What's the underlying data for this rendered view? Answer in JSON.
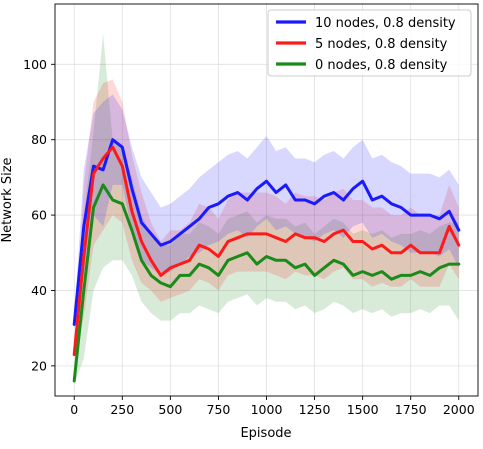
{
  "chart_data": {
    "type": "line",
    "title": "",
    "xlabel": "Episode",
    "ylabel": "Network Size",
    "xlim": [
      -100,
      2100
    ],
    "ylim": [
      12,
      116
    ],
    "xticks": [
      0,
      250,
      500,
      750,
      1000,
      1250,
      1500,
      1750,
      2000
    ],
    "yticks": [
      20,
      40,
      60,
      80,
      100
    ],
    "grid": true,
    "legend_position": "top-right",
    "x": [
      0,
      50,
      100,
      150,
      200,
      250,
      300,
      350,
      400,
      450,
      500,
      550,
      600,
      650,
      700,
      750,
      800,
      850,
      900,
      950,
      1000,
      1050,
      1100,
      1150,
      1200,
      1250,
      1300,
      1350,
      1400,
      1450,
      1500,
      1550,
      1600,
      1650,
      1700,
      1750,
      1800,
      1850,
      1900,
      1950,
      2000
    ],
    "series": [
      {
        "name": "10 nodes, 0.8 density",
        "color": "#1a1aff",
        "values": [
          31,
          57,
          73,
          72,
          80,
          78,
          67,
          58,
          55,
          52,
          53,
          55,
          57,
          59,
          62,
          63,
          65,
          66,
          64,
          67,
          69,
          66,
          68,
          64,
          64,
          63,
          65,
          66,
          64,
          67,
          69,
          64,
          65,
          63,
          62,
          60,
          60,
          60,
          59,
          61,
          56
        ],
        "upper": [
          32,
          72,
          87,
          90,
          92,
          88,
          78,
          70,
          66,
          62,
          63,
          65,
          67,
          70,
          72,
          74,
          76,
          77,
          75,
          78,
          81,
          77,
          78,
          75,
          75,
          74,
          76,
          77,
          75,
          78,
          80,
          75,
          76,
          74,
          73,
          71,
          71,
          71,
          70,
          72,
          68
        ],
        "lower": [
          30,
          44,
          60,
          57,
          68,
          68,
          56,
          48,
          46,
          44,
          45,
          47,
          49,
          50,
          52,
          53,
          55,
          56,
          54,
          57,
          59,
          56,
          57,
          55,
          54,
          53,
          55,
          56,
          54,
          57,
          58,
          54,
          55,
          53,
          52,
          50,
          50,
          50,
          49,
          51,
          46
        ]
      },
      {
        "name": "5 nodes, 0.8 density",
        "color": "#ff1a1a",
        "values": [
          23,
          49,
          71,
          75,
          78,
          73,
          61,
          53,
          48,
          44,
          46,
          47,
          48,
          52,
          51,
          49,
          53,
          54,
          55,
          55,
          55,
          54,
          53,
          55,
          54,
          54,
          53,
          55,
          56,
          53,
          53,
          51,
          52,
          50,
          50,
          52,
          50,
          50,
          50,
          57,
          52
        ],
        "upper": [
          24,
          68,
          90,
          95,
          96,
          90,
          76,
          66,
          58,
          53,
          56,
          56,
          58,
          63,
          62,
          59,
          64,
          66,
          66,
          66,
          66,
          65,
          63,
          66,
          65,
          65,
          64,
          66,
          67,
          64,
          64,
          62,
          62,
          60,
          60,
          62,
          60,
          60,
          60,
          68,
          62
        ],
        "lower": [
          22,
          33,
          52,
          56,
          60,
          58,
          48,
          42,
          40,
          37,
          38,
          39,
          40,
          43,
          42,
          40,
          44,
          45,
          45,
          45,
          45,
          44,
          43,
          45,
          44,
          44,
          43,
          45,
          46,
          43,
          43,
          41,
          42,
          41,
          41,
          43,
          41,
          41,
          41,
          47,
          43
        ]
      },
      {
        "name": "0 nodes, 0.8 density",
        "color": "#1a8a1a",
        "values": [
          16,
          40,
          62,
          68,
          64,
          63,
          56,
          48,
          44,
          42,
          41,
          44,
          44,
          47,
          46,
          44,
          48,
          49,
          50,
          47,
          49,
          48,
          48,
          46,
          47,
          44,
          46,
          48,
          47,
          44,
          45,
          44,
          45,
          43,
          44,
          44,
          45,
          44,
          46,
          47,
          47
        ],
        "upper": [
          17,
          60,
          82,
          108,
          80,
          78,
          70,
          60,
          55,
          52,
          52,
          55,
          55,
          58,
          57,
          55,
          59,
          60,
          61,
          58,
          60,
          59,
          59,
          57,
          58,
          55,
          57,
          59,
          58,
          55,
          56,
          55,
          56,
          54,
          55,
          55,
          56,
          55,
          57,
          58,
          58
        ],
        "lower": [
          15,
          22,
          40,
          46,
          48,
          48,
          44,
          37,
          34,
          32,
          32,
          34,
          34,
          36,
          35,
          34,
          37,
          38,
          39,
          36,
          38,
          37,
          37,
          35,
          36,
          34,
          35,
          37,
          36,
          34,
          35,
          34,
          35,
          33,
          34,
          34,
          35,
          34,
          36,
          36,
          32
        ]
      }
    ]
  }
}
